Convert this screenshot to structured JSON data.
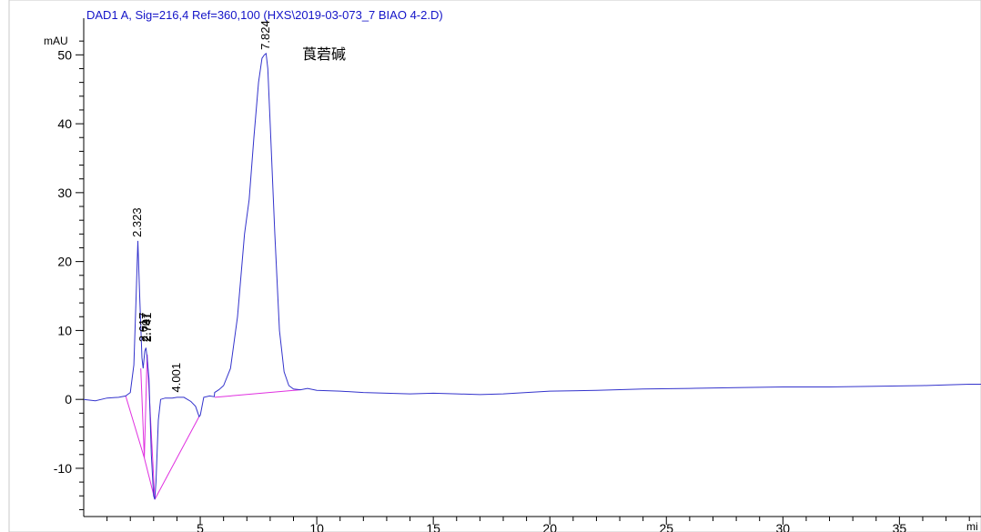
{
  "chart_data": {
    "type": "line",
    "title": "DAD1 A, Sig=216,4 Ref=360,100 (HXS\\2019-03-073_7 BIAO 4-2.D)",
    "ylabel": "mAU",
    "xlabel": "mi",
    "xlim": [
      0,
      38.5
    ],
    "ylim": [
      -17,
      54
    ],
    "x_ticks": [
      5,
      10,
      15,
      20,
      25,
      30,
      35
    ],
    "x_tick_labels": [
      "5",
      "10",
      "15",
      "20",
      "25",
      "30",
      "35"
    ],
    "y_ticks": [
      -10,
      0,
      10,
      20,
      30,
      40,
      50
    ],
    "y_tick_labels": [
      "-10",
      "0",
      "10",
      "20",
      "30",
      "40",
      "50"
    ],
    "grid": false,
    "colors": {
      "signal": "#3333cc",
      "baseline": "#e030e0",
      "title": "#1414c8"
    },
    "series": [
      {
        "values_x": [
          0,
          0.5,
          1.0,
          1.5,
          1.8,
          2.0,
          2.15,
          2.25,
          2.323,
          2.4,
          2.5,
          2.55,
          2.62,
          2.67,
          2.72,
          2.8,
          2.9,
          3.0,
          3.05,
          3.1,
          3.2,
          3.3,
          3.5,
          3.8,
          4.001,
          4.3,
          4.6,
          4.8,
          4.95,
          5.0,
          5.15,
          5.4,
          5.6,
          5.62,
          5.8,
          6.0,
          6.3,
          6.6,
          6.9,
          7.1,
          7.3,
          7.5,
          7.65,
          7.75,
          7.824,
          7.9,
          8.0,
          8.2,
          8.4,
          8.6,
          8.8,
          9.0,
          9.3,
          9.6,
          10,
          11,
          12,
          13,
          14,
          15,
          16,
          17,
          18,
          19,
          20,
          22,
          24,
          26,
          28,
          30,
          32,
          34,
          36,
          37,
          38,
          38.5
        ],
        "values_y": [
          0,
          -0.2,
          0.2,
          0.3,
          0.5,
          1.0,
          5.0,
          15.0,
          23.0,
          15.0,
          6.0,
          4.5,
          7.0,
          7.5,
          6.0,
          3.0,
          -8.0,
          -14.0,
          -14.5,
          -12.0,
          -3.0,
          0.0,
          0.2,
          0.2,
          0.3,
          0.3,
          -0.3,
          -1.0,
          -2.5,
          -2.3,
          0.3,
          0.5,
          0.4,
          1.0,
          1.4,
          2.0,
          4.5,
          12.0,
          24.0,
          29.0,
          38.0,
          46.0,
          49.5,
          50.0,
          50.2,
          48.0,
          40.0,
          24.0,
          10.0,
          4.0,
          2.0,
          1.5,
          1.4,
          1.6,
          1.3,
          1.2,
          1.0,
          0.9,
          0.8,
          0.9,
          0.8,
          0.7,
          0.8,
          1.0,
          1.2,
          1.3,
          1.5,
          1.6,
          1.7,
          1.8,
          1.8,
          1.9,
          2.0,
          2.1,
          2.2,
          2.2
        ]
      }
    ],
    "baselines": [
      {
        "x": [
          1.8,
          2.6
        ],
        "y": [
          0.5,
          -8.5
        ]
      },
      {
        "x": [
          2.45,
          2.6
        ],
        "y": [
          4.5,
          -8.5
        ]
      },
      {
        "x": [
          2.6,
          2.72
        ],
        "y": [
          -8.5,
          6.5
        ]
      },
      {
        "x": [
          2.72,
          3.05
        ],
        "y": [
          6.5,
          -14.5
        ]
      },
      {
        "x": [
          2.6,
          3.05
        ],
        "y": [
          -8.5,
          -14.5
        ]
      },
      {
        "x": [
          3.05,
          4.95
        ],
        "y": [
          -14.5,
          -2.5
        ]
      },
      {
        "x": [
          5.62,
          9.3
        ],
        "y": [
          0.3,
          1.4
        ]
      }
    ],
    "peaks": [
      {
        "label": "2.323",
        "x": 2.323,
        "y": 23.0
      },
      {
        "label": "2.617",
        "x": 2.6,
        "y": 7.8
      },
      {
        "label": "2.707",
        "x": 2.72,
        "y": 7.8
      },
      {
        "label": "2.741",
        "x": 2.76,
        "y": 7.8
      },
      {
        "label": "4.001",
        "x": 4.001,
        "y": 0.5
      },
      {
        "label": "7.824",
        "x": 7.824,
        "y": 50.2
      }
    ],
    "annotation": "莨菪碱"
  }
}
